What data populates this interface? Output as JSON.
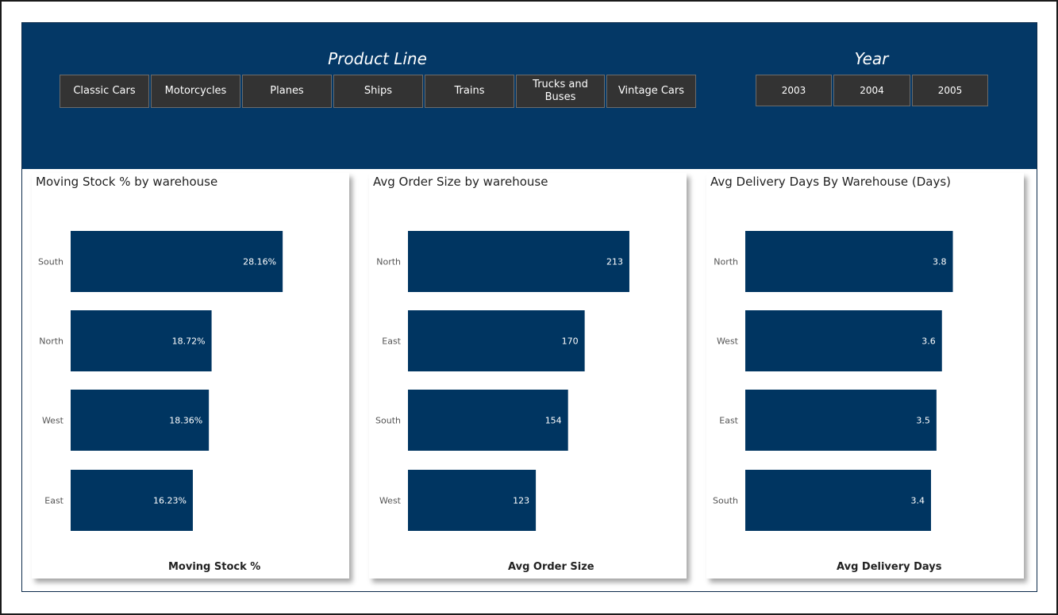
{
  "slicers": {
    "product_line": {
      "title": "Product Line",
      "options": [
        "Classic Cars",
        "Motorcycles",
        "Planes",
        "Ships",
        "Trains",
        "Trucks and Buses",
        "Vintage Cars"
      ]
    },
    "year": {
      "title": "Year",
      "options": [
        "2003",
        "2004",
        "2005"
      ]
    }
  },
  "colors": {
    "header": "#043866",
    "bar": "#003561",
    "slicer_button": "#333333"
  },
  "chart_data": [
    {
      "type": "bar",
      "orientation": "horizontal",
      "title": "Moving Stock % by warehouse",
      "xlabel": "Moving Stock %",
      "ylabel": "",
      "categories": [
        "South",
        "North",
        "West",
        "East"
      ],
      "values": [
        28.16,
        18.72,
        18.36,
        16.23
      ],
      "labels": [
        "28.16%",
        "18.72%",
        "18.36%",
        "16.23%"
      ],
      "xlim": [
        0,
        37
      ],
      "grid": false
    },
    {
      "type": "bar",
      "orientation": "horizontal",
      "title": "Avg Order Size by warehouse",
      "xlabel": "Avg Order Size",
      "ylabel": "",
      "categories": [
        "North",
        "East",
        "South",
        "West"
      ],
      "values": [
        213,
        170,
        154,
        123
      ],
      "labels": [
        "213",
        "170",
        "154",
        "123"
      ],
      "xlim": [
        0,
        268
      ],
      "grid": false
    },
    {
      "type": "bar",
      "orientation": "horizontal",
      "title": "Avg Delivery Days By Warehouse (Days)",
      "xlabel": "Avg Delivery Days",
      "ylabel": "",
      "categories": [
        "North",
        "West",
        "East",
        "South"
      ],
      "values": [
        3.8,
        3.6,
        3.5,
        3.4
      ],
      "labels": [
        "3.8",
        "3.6",
        "3.5",
        "3.4"
      ],
      "xlim": [
        0,
        5.1
      ],
      "grid": false
    }
  ]
}
